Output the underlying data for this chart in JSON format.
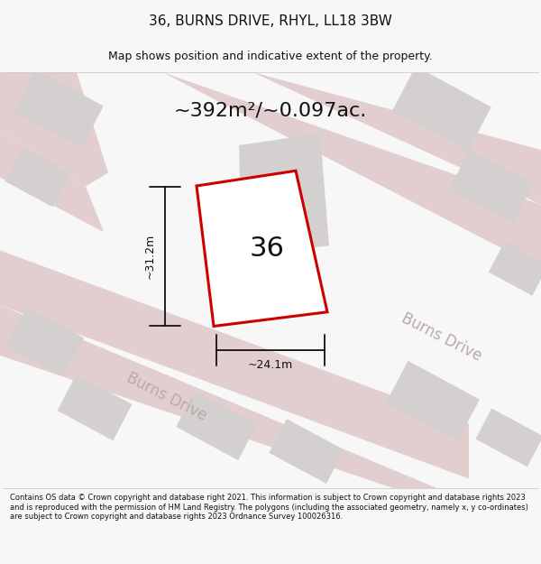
{
  "title": "36, BURNS DRIVE, RHYL, LL18 3BW",
  "subtitle": "Map shows position and indicative extent of the property.",
  "area_text": "~392m²/~0.097ac.",
  "house_number": "36",
  "dim_width": "~24.1m",
  "dim_height": "~31.2m",
  "road_label_1": "Burns Drive",
  "road_label_2": "Burns Drive",
  "footer": "Contains OS data © Crown copyright and database right 2021. This information is subject to Crown copyright and database rights 2023 and is reproduced with the permission of HM Land Registry. The polygons (including the associated geometry, namely x, y co-ordinates) are subject to Crown copyright and database rights 2023 Ordnance Survey 100026316.",
  "bg_color": "#f7f7f7",
  "map_bg": "#eeebeb",
  "plot_outline_color": "#cc0000",
  "plot_fill_color": "#ffffff",
  "building_color": "#d4d0d0",
  "road_color": "#e2cece",
  "dim_line_color": "#111111",
  "text_color": "#111111",
  "road_text_color": "#b8aaaa",
  "title_fontsize": 11,
  "subtitle_fontsize": 9,
  "area_fontsize": 16,
  "house_fontsize": 22,
  "road_fontsize": 12,
  "dim_fontsize": 9,
  "footer_fontsize": 6.0
}
